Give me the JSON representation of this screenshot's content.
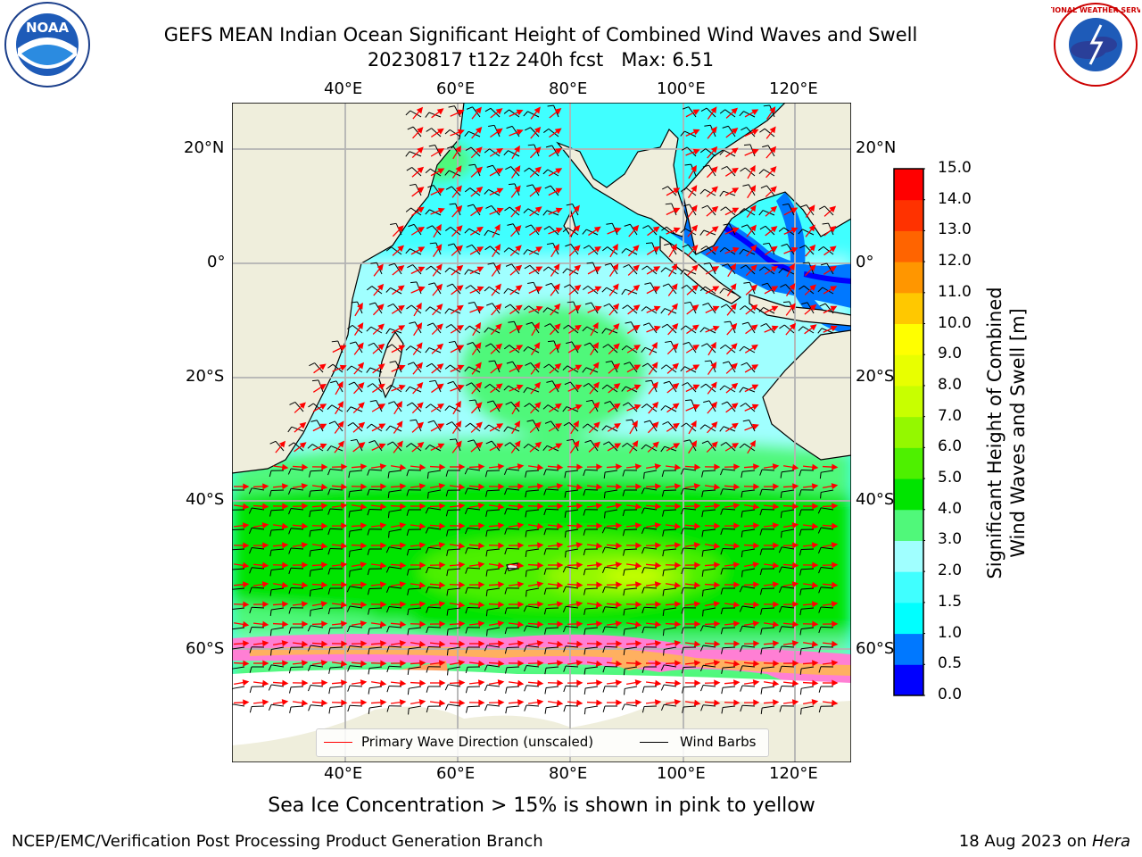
{
  "title_line1": "GEFS MEAN Indian Ocean Significant Height of Combined Wind Waves and Swell",
  "title_line2": "20230817 t12z 240h fcst   Max: 6.51",
  "footer_left": "NCEP/EMC/Verification Post Processing Product Generation Branch",
  "footer_date": "18 Aug 2023 on",
  "footer_host": "Hera",
  "ice_note": "Sea Ice Concentration > 15% is shown in pink to yellow",
  "logos": {
    "noaa_text": "NOAA",
    "noaa_ring": "NATIONAL OCEANIC AND ATMOSPHERIC ADMINISTRATION · U.S. DEPARTMENT OF COMMERCE",
    "nws_ring": "NATIONAL WEATHER SERVICE"
  },
  "map": {
    "lon_ticks": [
      "40°E",
      "60°E",
      "80°E",
      "100°E",
      "120°E"
    ],
    "lat_ticks": [
      "20°N",
      "0°",
      "20°S",
      "40°S",
      "60°S"
    ],
    "land_color": "#efeedc",
    "grid_color": "#b3b3b3"
  },
  "colorbar": {
    "label_line1": "Significant Height of Combined",
    "label_line2": "Wind Waves and Swell [m]",
    "ticks": [
      "15.0",
      "14.0",
      "13.0",
      "12.0",
      "11.0",
      "10.0",
      "9.0",
      "8.0",
      "7.0",
      "6.0",
      "5.0",
      "4.0",
      "3.0",
      "2.0",
      "1.5",
      "1.0",
      "0.5",
      "0.0"
    ],
    "bands_bottom_to_top": [
      "#0000ff",
      "#0078ff",
      "#00ffff",
      "#40ffff",
      "#a0ffff",
      "#50f87a",
      "#00e400",
      "#4ef000",
      "#94f800",
      "#c8ff00",
      "#e8ff00",
      "#ffff00",
      "#ffc800",
      "#ff9600",
      "#ff6400",
      "#ff3200",
      "#ff0000"
    ]
  },
  "legend": {
    "wave_label": "Primary Wave Direction (unscaled)",
    "wave_color": "#ff0000",
    "barb_label": "Wind Barbs",
    "barb_color": "#000000"
  },
  "chart_data": {
    "type": "heatmap",
    "title": "GEFS MEAN Indian Ocean Significant Height of Combined Wind Waves and Swell",
    "subtitle": "20230817 t12z 240h fcst   Max: 6.51",
    "max_value": 6.51,
    "units": "m",
    "xlim_lon": [
      20,
      130
    ],
    "ylim_lat": [
      -80,
      28
    ],
    "regions": [
      {
        "area": "Arabian Sea / Bay of Bengal / tropics",
        "value_range": [
          1.5,
          2.0
        ]
      },
      {
        "area": "central subtropical Indian Ocean",
        "value_range": [
          3.0,
          4.0
        ]
      },
      {
        "area": "southern Indian Ocean 35S-60S",
        "value_range": [
          4.0,
          5.0
        ]
      },
      {
        "area": "core near 50S 90E",
        "value_range": [
          6.0,
          6.51
        ]
      },
      {
        "area": "Indonesian seas",
        "value_range": [
          0.0,
          1.0
        ]
      }
    ]
  }
}
